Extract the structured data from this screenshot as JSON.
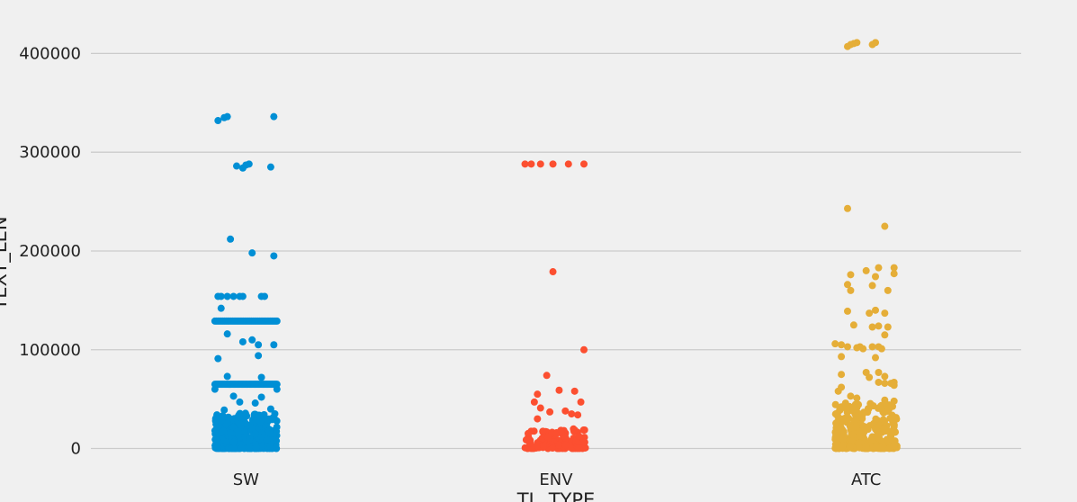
{
  "chart_data": {
    "type": "scatter",
    "subtype": "strip",
    "xlabel": "TL_TYPE",
    "ylabel": "TEXT_LEN",
    "categories": [
      "SW",
      "ENV",
      "ATC"
    ],
    "colors": [
      "#008fd5",
      "#fc4f30",
      "#e5ae38"
    ],
    "ylim": [
      -15000,
      445000
    ],
    "yticks": [
      0,
      100000,
      200000,
      300000,
      400000
    ],
    "ytick_labels": [
      "0",
      "100000",
      "200000",
      "300000",
      "400000"
    ],
    "grid": "horizontal",
    "series": [
      {
        "category": "SW",
        "outliers": [
          [
            -0.09,
            332000
          ],
          [
            -0.07,
            335000
          ],
          [
            -0.06,
            336000
          ],
          [
            0.09,
            336000
          ],
          [
            -0.03,
            286000
          ],
          [
            -0.01,
            284000
          ],
          [
            0.0,
            287000
          ],
          [
            0.01,
            288000
          ],
          [
            0.08,
            285000
          ],
          [
            -0.05,
            212000
          ],
          [
            0.02,
            198000
          ],
          [
            0.09,
            195000
          ],
          [
            -0.09,
            154000
          ],
          [
            -0.08,
            154000
          ],
          [
            -0.06,
            154000
          ],
          [
            -0.04,
            154000
          ],
          [
            -0.02,
            154000
          ],
          [
            -0.01,
            154000
          ],
          [
            0.05,
            154000
          ],
          [
            0.06,
            154000
          ],
          [
            -0.08,
            142000
          ],
          [
            -0.06,
            116000
          ],
          [
            -0.01,
            108000
          ],
          [
            0.02,
            110000
          ],
          [
            0.04,
            105000
          ],
          [
            0.09,
            105000
          ],
          [
            0.04,
            94000
          ],
          [
            -0.09,
            91000
          ],
          [
            0.05,
            72000
          ],
          [
            -0.06,
            73000
          ],
          [
            -0.04,
            53000
          ],
          [
            0.05,
            52000
          ],
          [
            -0.02,
            47000
          ],
          [
            0.03,
            46000
          ],
          [
            -0.07,
            39000
          ],
          [
            0.08,
            40000
          ]
        ],
        "bands": [
          [
            129000,
            40
          ],
          [
            65000,
            55
          ],
          [
            60000,
            2
          ]
        ],
        "dense_range": [
          0,
          36000,
          420
        ]
      },
      {
        "category": "ENV",
        "outliers": [
          [
            -0.1,
            288000
          ],
          [
            -0.08,
            288000
          ],
          [
            -0.05,
            288000
          ],
          [
            -0.01,
            288000
          ],
          [
            0.04,
            288000
          ],
          [
            0.09,
            288000
          ],
          [
            -0.01,
            179000
          ],
          [
            0.09,
            100000
          ],
          [
            -0.03,
            74000
          ],
          [
            -0.06,
            55000
          ],
          [
            0.06,
            58000
          ],
          [
            0.01,
            59000
          ],
          [
            -0.07,
            47000
          ],
          [
            0.08,
            47000
          ],
          [
            -0.05,
            41000
          ],
          [
            -0.02,
            37000
          ],
          [
            0.03,
            38000
          ],
          [
            0.05,
            35000
          ],
          [
            -0.06,
            30000
          ],
          [
            0.07,
            34000
          ]
        ],
        "bands": [],
        "dense_range": [
          0,
          20000,
          140
        ]
      },
      {
        "category": "ATC",
        "outliers": [
          [
            -0.06,
            407000
          ],
          [
            -0.05,
            409000
          ],
          [
            -0.04,
            410000
          ],
          [
            -0.03,
            411000
          ],
          [
            0.02,
            409000
          ],
          [
            0.03,
            411000
          ],
          [
            -0.06,
            243000
          ],
          [
            0.06,
            225000
          ],
          [
            0.09,
            183000
          ],
          [
            0.04,
            183000
          ],
          [
            -0.05,
            176000
          ],
          [
            0.0,
            180000
          ],
          [
            0.09,
            177000
          ],
          [
            0.03,
            174000
          ],
          [
            -0.06,
            166000
          ],
          [
            0.02,
            165000
          ],
          [
            -0.05,
            160000
          ],
          [
            0.07,
            160000
          ],
          [
            -0.06,
            139000
          ],
          [
            0.03,
            140000
          ],
          [
            0.06,
            137000
          ],
          [
            0.01,
            137000
          ],
          [
            -0.04,
            125000
          ],
          [
            0.02,
            123000
          ],
          [
            0.04,
            124000
          ],
          [
            0.07,
            123000
          ],
          [
            0.06,
            115000
          ],
          [
            -0.1,
            106000
          ],
          [
            -0.08,
            105000
          ],
          [
            -0.06,
            103000
          ],
          [
            -0.03,
            102000
          ],
          [
            -0.02,
            103000
          ],
          [
            -0.01,
            101000
          ],
          [
            0.02,
            103000
          ],
          [
            0.04,
            103000
          ],
          [
            0.05,
            101000
          ],
          [
            -0.08,
            93000
          ],
          [
            0.03,
            92000
          ],
          [
            -0.08,
            75000
          ],
          [
            0.0,
            77000
          ],
          [
            0.01,
            72000
          ],
          [
            0.04,
            77000
          ],
          [
            0.06,
            73000
          ],
          [
            0.04,
            67000
          ],
          [
            0.06,
            66000
          ],
          [
            0.08,
            66000
          ],
          [
            0.09,
            67000
          ],
          [
            0.09,
            64000
          ],
          [
            -0.08,
            62000
          ],
          [
            -0.09,
            58000
          ],
          [
            -0.05,
            53000
          ],
          [
            -0.03,
            51000
          ],
          [
            0.06,
            49000
          ],
          [
            0.09,
            48000
          ]
        ],
        "bands": [],
        "dense_range": [
          0,
          46000,
          300
        ]
      }
    ]
  }
}
